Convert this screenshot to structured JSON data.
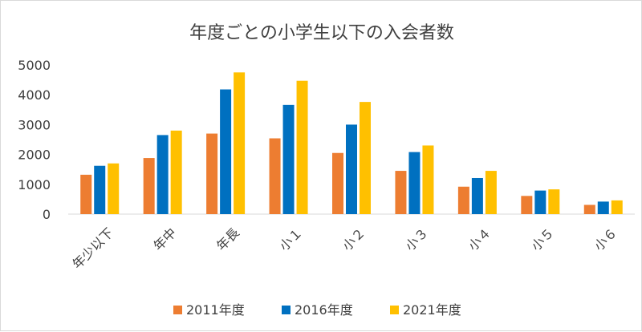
{
  "chart_data": {
    "type": "bar",
    "title": "年度ごとの小学生以下の入会者数",
    "categories": [
      "年少以下",
      "年中",
      "年長",
      "小１",
      "小２",
      "小３",
      "小４",
      "小５",
      "小６"
    ],
    "series": [
      {
        "name": "2011年度",
        "color": "#ed7d31",
        "values": [
          1320,
          1880,
          2700,
          2540,
          2050,
          1450,
          920,
          610,
          310
        ]
      },
      {
        "name": "2016年度",
        "color": "#0070c0",
        "values": [
          1620,
          2650,
          4180,
          3660,
          3000,
          2080,
          1210,
          790,
          420
        ]
      },
      {
        "name": "2021年度",
        "color": "#ffc000",
        "values": [
          1700,
          2800,
          4750,
          4470,
          3760,
          2300,
          1450,
          830,
          460
        ]
      }
    ],
    "y_ticks": [
      "0",
      "1000",
      "2000",
      "3000",
      "4000",
      "5000"
    ],
    "ylim": [
      0,
      5000
    ],
    "grid": false,
    "legend_position": "bottom"
  }
}
